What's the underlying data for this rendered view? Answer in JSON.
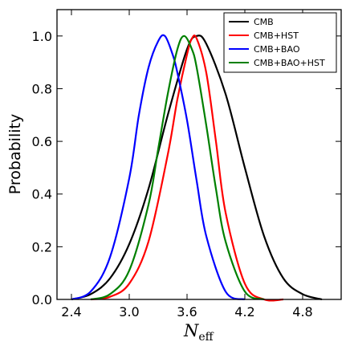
{
  "chart_data": {
    "type": "line",
    "xlabel_main": "N",
    "xlabel_sub": "eff",
    "ylabel": "Probability",
    "xlim": [
      2.25,
      5.2
    ],
    "ylim": [
      0.0,
      1.1
    ],
    "xticks": [
      2.4,
      3.0,
      3.6,
      4.2,
      4.8
    ],
    "xtick_labels": [
      "2.4",
      "3.0",
      "3.6",
      "4.2",
      "4.8"
    ],
    "yticks": [
      0.0,
      0.2,
      0.4,
      0.6,
      0.8,
      1.0
    ],
    "ytick_labels": [
      "0.0",
      "0.2",
      "0.4",
      "0.6",
      "0.8",
      "1.0"
    ],
    "grid": false,
    "legend_position": "top-right",
    "series": [
      {
        "name": "CMB",
        "color": "#000000",
        "x": [
          2.4,
          2.6,
          2.8,
          3.0,
          3.2,
          3.4,
          3.6,
          3.7,
          3.8,
          4.0,
          4.2,
          4.4,
          4.6,
          4.8,
          5.0
        ],
        "y": [
          0.0,
          0.02,
          0.08,
          0.21,
          0.42,
          0.7,
          0.95,
          1.0,
          0.97,
          0.78,
          0.5,
          0.24,
          0.08,
          0.02,
          0.0
        ]
      },
      {
        "name": "CMB+HST",
        "color": "#ff0000",
        "x": [
          2.6,
          2.8,
          3.0,
          3.2,
          3.4,
          3.5,
          3.6,
          3.65,
          3.7,
          3.8,
          3.9,
          4.0,
          4.2,
          4.4,
          4.6
        ],
        "y": [
          0.0,
          0.01,
          0.06,
          0.22,
          0.55,
          0.76,
          0.93,
          0.99,
          0.99,
          0.86,
          0.6,
          0.33,
          0.06,
          0.0,
          0.0
        ]
      },
      {
        "name": "CMB+BAO",
        "color": "#0000ff",
        "x": [
          2.4,
          2.6,
          2.8,
          3.0,
          3.1,
          3.2,
          3.3,
          3.37,
          3.45,
          3.5,
          3.6,
          3.7,
          3.8,
          4.0,
          4.2
        ],
        "y": [
          0.0,
          0.03,
          0.16,
          0.46,
          0.7,
          0.88,
          0.98,
          1.0,
          0.93,
          0.86,
          0.68,
          0.45,
          0.24,
          0.03,
          0.0
        ]
      },
      {
        "name": "CMB+BAO+HST",
        "color": "#008000",
        "x": [
          2.6,
          2.8,
          3.0,
          3.2,
          3.3,
          3.4,
          3.5,
          3.57,
          3.65,
          3.7,
          3.8,
          3.9,
          4.0,
          4.2,
          4.4
        ],
        "y": [
          0.0,
          0.02,
          0.11,
          0.36,
          0.57,
          0.78,
          0.95,
          1.0,
          0.95,
          0.88,
          0.66,
          0.42,
          0.22,
          0.03,
          0.0
        ]
      }
    ]
  }
}
